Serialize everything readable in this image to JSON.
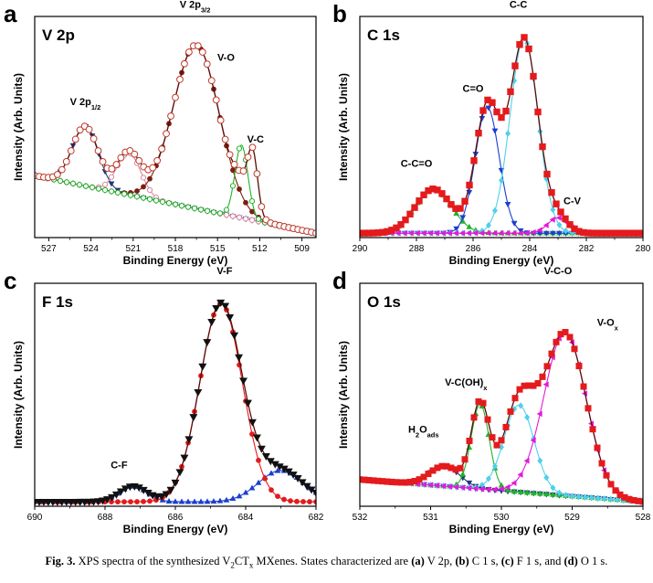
{
  "caption": {
    "prefix": "Fig. 3.",
    "text_1": " XPS spectra of the synthesized V",
    "sub_1": "2",
    "text_2": "CT",
    "sub_2": "x",
    "text_3": " MXenes. States characterized are ",
    "a": "(a)",
    "a_text": " V 2p, ",
    "b": "(b)",
    "b_text": " C 1 s, ",
    "c": "(c)",
    "c_text": " F 1 s, and ",
    "d": "(d)",
    "d_text": " O 1 s."
  },
  "colors": {
    "envelope": "#c0392b",
    "red": "#e41a1c",
    "dark_red": "#7a1e10",
    "navy": "#1f3a7a",
    "blue": "#1a3fd0",
    "green": "#22b32a",
    "cyan": "#4fd0ea",
    "magenta": "#e41ad8",
    "pink": "#d98aa0",
    "lavender": "#a38ad8",
    "olive": "#b0a040",
    "black": "#111111"
  },
  "chart_data": [
    {
      "panel": "a",
      "type": "line",
      "title": "V 2p",
      "xlabel": "Binding Energy (eV)",
      "ylabel": "Intensity (Arb. Units)",
      "xlim": [
        528,
        508
      ],
      "xticks": [
        527,
        524,
        521,
        518,
        515,
        512,
        509
      ],
      "ylim": [
        0,
        1
      ],
      "reversed": true,
      "annotations": [
        {
          "text": "V 2p",
          "sub": "1/2",
          "x": 524.4,
          "y": 0.6
        },
        {
          "text": "V 2p",
          "sub": "3/2",
          "x": 516.6,
          "y": 1.04
        },
        {
          "text": "V-O",
          "x": 514.4,
          "y": 0.8
        },
        {
          "text": "V-C",
          "x": 512.3,
          "y": 0.43
        }
      ],
      "series": [
        {
          "name": "",
          "role": "background",
          "marker": "diamond",
          "color": "lavender",
          "hollow": true,
          "peaks": [],
          "base": [
            528,
            0.28,
            508,
            0.02
          ]
        },
        {
          "name": "",
          "role": "component",
          "marker": "triangle-down",
          "color": "navy",
          "peaks": [
            [
              524.4,
              0.27,
              1.3
            ]
          ],
          "base": [
            528,
            0.28,
            508,
            0.02
          ]
        },
        {
          "name": "",
          "role": "component",
          "marker": "circle",
          "color": "pink",
          "hollow": true,
          "peaks": [
            [
              521.3,
              0.19,
              1.2
            ]
          ],
          "base": [
            528,
            0.28,
            508,
            0.02
          ]
        },
        {
          "name": "",
          "role": "component",
          "marker": "circle",
          "color": "dark_red",
          "peaks": [
            [
              516.5,
              0.74,
              2.3
            ]
          ],
          "base": [
            528,
            0.28,
            508,
            0.02
          ]
        },
        {
          "name": "",
          "role": "component",
          "marker": "circle",
          "color": "green",
          "hollow": true,
          "peaks": [
            [
              513.3,
              0.33,
              0.65
            ]
          ],
          "base": [
            528,
            0.28,
            508,
            0.02
          ]
        },
        {
          "name": "",
          "role": "envelope",
          "marker": "circle",
          "color": "envelope",
          "hollow": true,
          "size": 3.4,
          "peaks": [
            [
              524.4,
              0.27,
              1.3
            ],
            [
              521.3,
              0.19,
              1.2
            ],
            [
              516.5,
              0.74,
              2.3
            ],
            [
              513.3,
              0.08,
              0.7
            ],
            [
              512.5,
              0.27,
              0.5
            ]
          ],
          "base": [
            528,
            0.28,
            508,
            0.02
          ]
        }
      ]
    },
    {
      "panel": "b",
      "type": "line",
      "title": "C 1s",
      "xlabel": "Binding Energy (eV)",
      "ylabel": "Intensity (Arb. Units)",
      "xlim": [
        290,
        280
      ],
      "xticks": [
        290,
        288,
        286,
        284,
        282,
        280
      ],
      "ylim": [
        0,
        1
      ],
      "reversed": true,
      "annotations": [
        {
          "text": "C-C",
          "x": 284.4,
          "y": 1.04
        },
        {
          "text": "C=O",
          "x": 286.0,
          "y": 0.66
        },
        {
          "text": "C-C=O",
          "x": 288.0,
          "y": 0.32
        },
        {
          "text": "C-V",
          "x": 282.5,
          "y": 0.15
        }
      ],
      "series": [
        {
          "name": "",
          "role": "background",
          "marker": "none",
          "color": "olive",
          "peaks": [],
          "base": [
            290,
            0.02,
            280,
            0.02
          ]
        },
        {
          "name": "",
          "role": "component",
          "marker": "triangle-up",
          "color": "green",
          "peaks": [
            [
              287.4,
              0.2,
              0.9
            ]
          ],
          "base": [
            290,
            0.02,
            280,
            0.02
          ]
        },
        {
          "name": "",
          "role": "component",
          "marker": "triangle-down",
          "color": "blue",
          "peaks": [
            [
              285.5,
              0.57,
              0.6
            ]
          ],
          "base": [
            290,
            0.02,
            280,
            0.02
          ]
        },
        {
          "name": "",
          "role": "component",
          "marker": "diamond",
          "color": "cyan",
          "peaks": [
            [
              284.2,
              0.88,
              0.7
            ]
          ],
          "base": [
            290,
            0.02,
            280,
            0.02
          ]
        },
        {
          "name": "",
          "role": "component",
          "marker": "triangle-left",
          "color": "magenta",
          "peaks": [
            [
              283.0,
              0.07,
              0.5
            ]
          ],
          "base": [
            290,
            0.02,
            280,
            0.02
          ]
        },
        {
          "name": "",
          "role": "envelope",
          "marker": "square",
          "color": "red",
          "size": 3.4,
          "peaks": [
            [
              287.4,
              0.2,
              0.9
            ],
            [
              285.5,
              0.57,
              0.6
            ],
            [
              284.2,
              0.88,
              0.7
            ],
            [
              283.0,
              0.07,
              0.5
            ]
          ],
          "base": [
            290,
            0.02,
            280,
            0.02
          ]
        }
      ]
    },
    {
      "panel": "c",
      "type": "line",
      "title": "F 1s",
      "xlabel": "Binding Energy (eV)",
      "ylabel": "Intensity (Arb. Units)",
      "xlim": [
        690,
        682
      ],
      "xticks": [
        690,
        688,
        686,
        684,
        682
      ],
      "ylim": [
        0,
        1
      ],
      "reversed": true,
      "annotations": [
        {
          "text": "V-F",
          "x": 684.6,
          "y": 1.04
        },
        {
          "text": "C-F",
          "x": 687.6,
          "y": 0.17
        }
      ],
      "series": [
        {
          "name": "",
          "role": "component",
          "marker": "triangle-up",
          "color": "blue",
          "peaks": [
            [
              687.2,
              0.07,
              0.55
            ],
            [
              683.0,
              0.14,
              0.9
            ]
          ],
          "base": [
            690,
            0.02,
            682,
            0.02
          ]
        },
        {
          "name": "",
          "role": "component",
          "marker": "circle",
          "color": "red",
          "peaks": [
            [
              684.7,
              0.89,
              0.85
            ]
          ],
          "base": [
            690,
            0.02,
            682,
            0.02
          ]
        },
        {
          "name": "",
          "role": "envelope",
          "marker": "triangle-down",
          "color": "black",
          "size": 3.6,
          "peaks": [
            [
              687.2,
              0.07,
              0.55
            ],
            [
              684.7,
              0.89,
              0.85
            ],
            [
              683.0,
              0.14,
              0.9
            ]
          ],
          "base": [
            690,
            0.02,
            682,
            0.02
          ]
        }
      ]
    },
    {
      "panel": "d",
      "type": "line",
      "title": "O 1s",
      "xlabel": "Binding Energy (eV)",
      "ylabel": "Intensity (Arb. Units)",
      "xlim": [
        532,
        528
      ],
      "xticks": [
        532,
        531,
        530,
        529,
        528
      ],
      "ylim": [
        0,
        1
      ],
      "reversed": true,
      "annotations": [
        {
          "text": "V-C-O",
          "x": 529.2,
          "y": 1.04
        },
        {
          "text": "V-O",
          "sub": "x",
          "x": 528.5,
          "y": 0.81
        },
        {
          "text": "V-C(OH)",
          "sub": "x",
          "x": 530.5,
          "y": 0.54
        },
        {
          "text": "H",
          "sub": "2",
          "text_2": "O",
          "sub_2": "ads",
          "x": 531.1,
          "y": 0.33
        }
      ],
      "series": [
        {
          "name": "",
          "role": "background",
          "marker": "triangle-down",
          "color": "blue",
          "peaks": [],
          "base": [
            532,
            0.12,
            528,
            0.02
          ]
        },
        {
          "name": "",
          "role": "component",
          "marker": "triangle-down",
          "color": "navy",
          "peaks": [
            [
              530.8,
              0.09,
              0.3
            ]
          ],
          "base": [
            532,
            0.12,
            528,
            0.02
          ]
        },
        {
          "name": "",
          "role": "component",
          "marker": "triangle-up",
          "color": "green",
          "peaks": [
            [
              530.3,
              0.38,
              0.18
            ]
          ],
          "base": [
            532,
            0.12,
            528,
            0.02
          ]
        },
        {
          "name": "",
          "role": "component",
          "marker": "diamond",
          "color": "cyan",
          "peaks": [
            [
              529.75,
              0.39,
              0.3
            ]
          ],
          "base": [
            532,
            0.12,
            528,
            0.02
          ]
        },
        {
          "name": "",
          "role": "component",
          "marker": "triangle-left",
          "color": "magenta",
          "peaks": [
            [
              529.1,
              0.73,
              0.42
            ]
          ],
          "base": [
            532,
            0.12,
            528,
            0.02
          ]
        },
        {
          "name": "",
          "role": "envelope",
          "marker": "square",
          "color": "red",
          "size": 3.2,
          "peaks": [
            [
              530.8,
              0.09,
              0.3
            ],
            [
              530.3,
              0.38,
              0.18
            ],
            [
              529.75,
              0.39,
              0.3
            ],
            [
              529.1,
              0.73,
              0.42
            ]
          ],
          "base": [
            532,
            0.12,
            528,
            0.02
          ]
        }
      ]
    }
  ]
}
